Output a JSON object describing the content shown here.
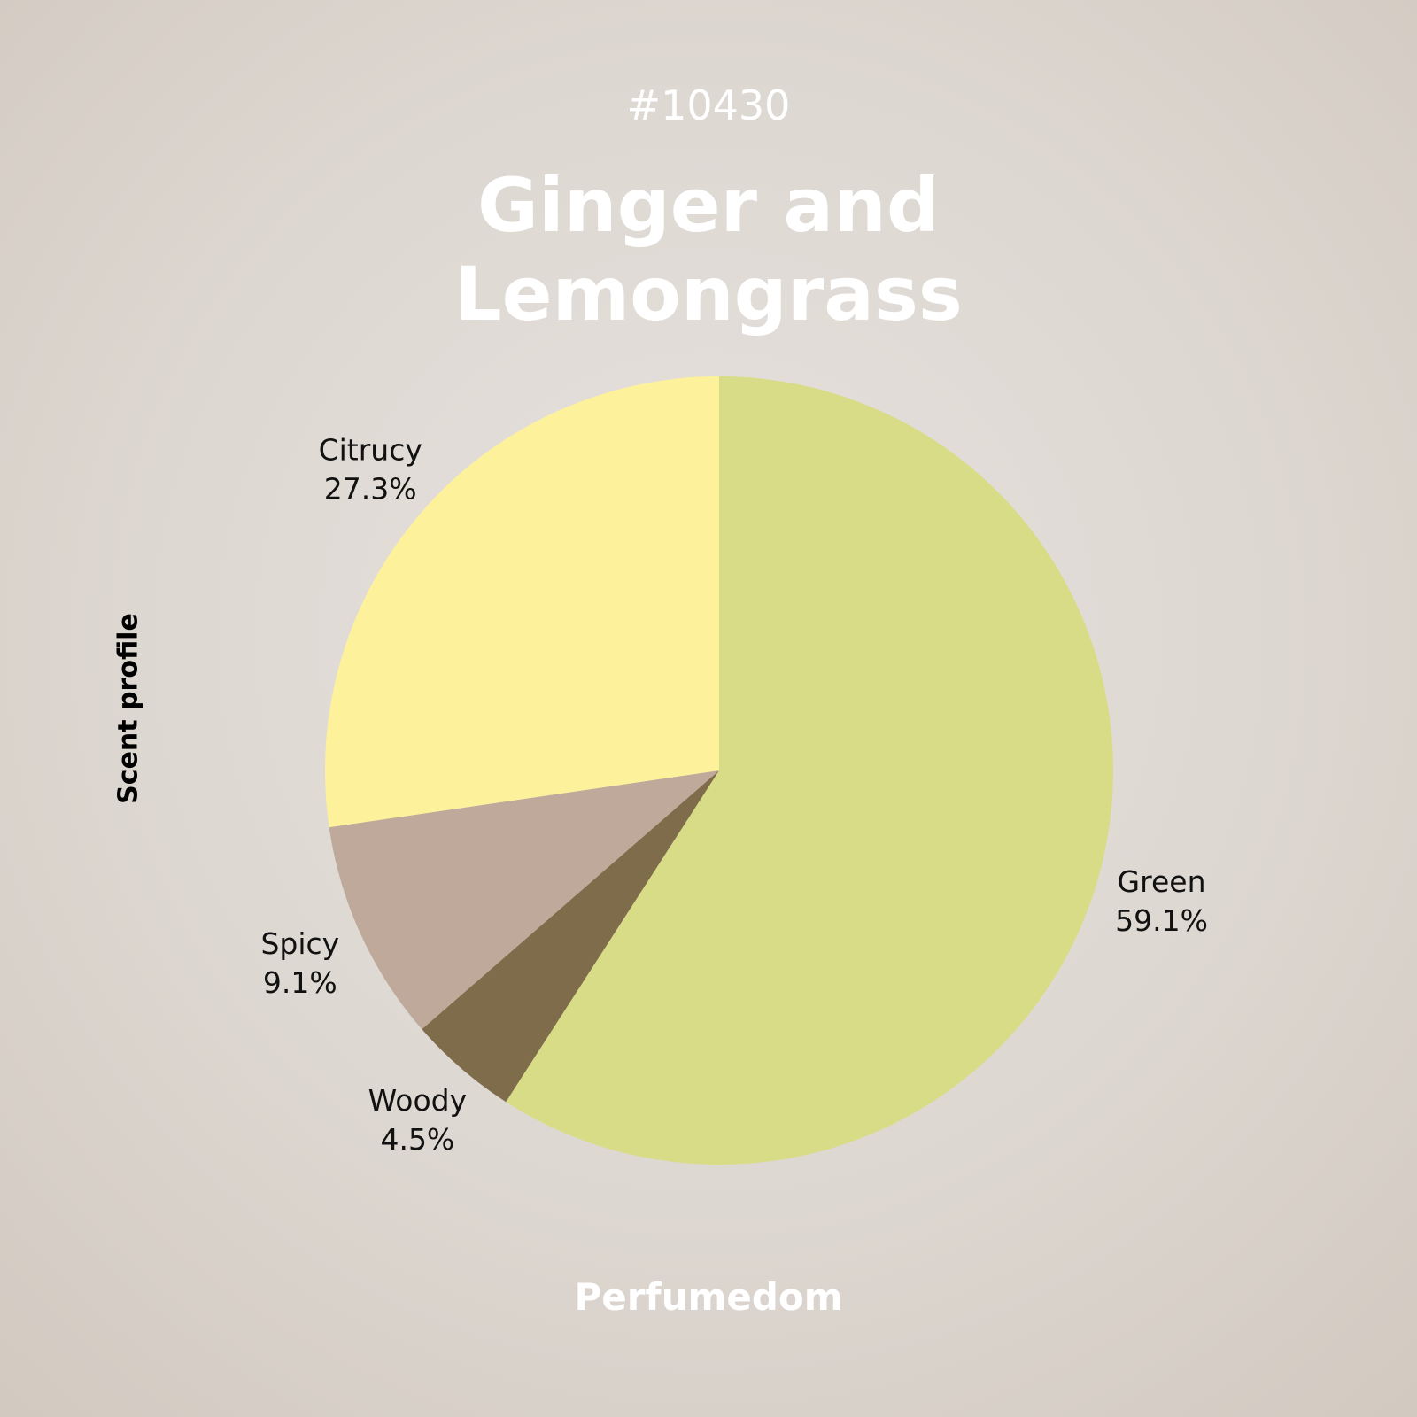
{
  "chart_data": {
    "type": "pie",
    "subtitle": "#10430",
    "title": "Ginger and Lemongrass",
    "side_label": "Scent profile",
    "footer": "Perfumedom",
    "categories": [
      "Green",
      "Woody",
      "Spicy",
      "Citrucy"
    ],
    "values": [
      59.1,
      4.5,
      9.1,
      27.3
    ],
    "value_labels": [
      "59.1%",
      "4.5%",
      "9.1%",
      "27.3%"
    ],
    "colors": [
      "#d8dc87",
      "#7f6c4a",
      "#bea99a",
      "#fef19c"
    ]
  }
}
